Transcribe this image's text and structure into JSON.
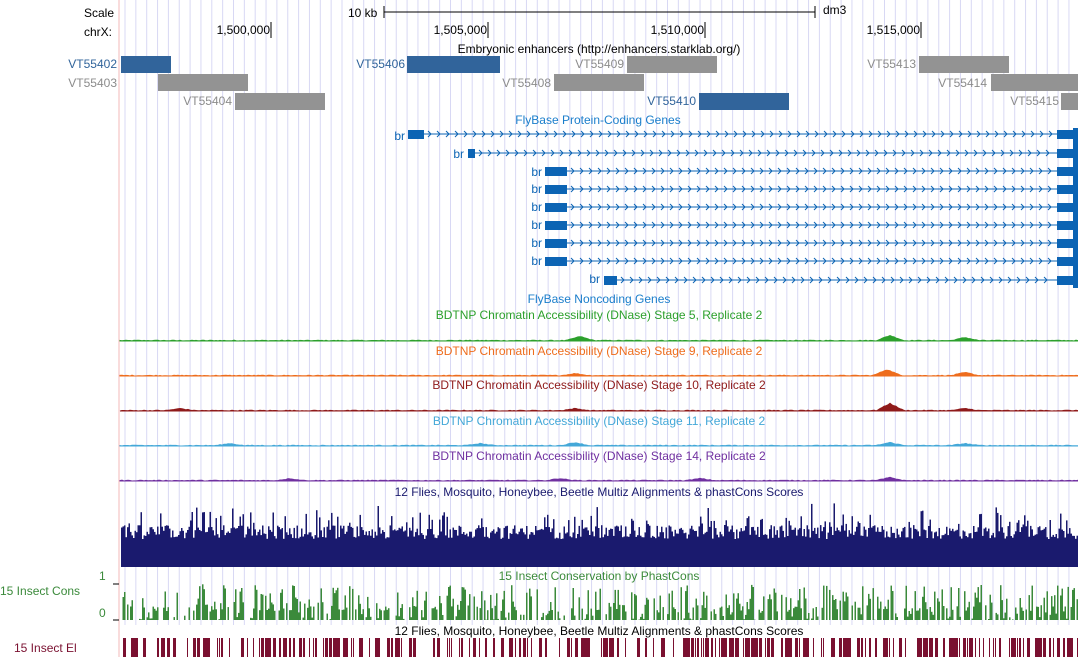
{
  "colors": {
    "enhancer_selected": "#31649b",
    "enhancer_other": "#939393",
    "enhancer_label_selected": "#31649b",
    "enhancer_label_other": "#8c8c8c",
    "gene": "#0c64b4",
    "noncoding": "#1a7ecb",
    "stage5": "#2ca02c",
    "stage9": "#ee6d1d",
    "stage10": "#8f1a1a",
    "stage11": "#44a8d8",
    "stage14": "#7030a0",
    "multiz": "#1a1a6e",
    "phastcons": "#3b8a3b",
    "elements": "#7a1030",
    "gridline": "#d8d8f4",
    "leftedge": "#f3b9b9"
  },
  "ruler": {
    "scale_label": "Scale",
    "scale_value": "10 kb",
    "assembly": "dm3",
    "chrom_label": "chrX:",
    "ticks": [
      "1,500,000",
      "1,505,000",
      "1,510,000",
      "1,515,000"
    ]
  },
  "tracks": {
    "enhancers": {
      "title": "Embryonic enhancers (http://enhancers.starklab.org/)",
      "items": [
        {
          "label": "VT55402",
          "selected": true
        },
        {
          "label": "VT55403",
          "selected": false
        },
        {
          "label": "VT55404",
          "selected": false
        },
        {
          "label": "VT55406",
          "selected": true
        },
        {
          "label": "VT55408",
          "selected": false
        },
        {
          "label": "VT55409",
          "selected": false
        },
        {
          "label": "VT55410",
          "selected": true
        },
        {
          "label": "VT55413",
          "selected": false
        },
        {
          "label": "VT55414",
          "selected": false
        },
        {
          "label": "VT55415",
          "selected": false
        }
      ]
    },
    "genes": {
      "title": "FlyBase Protein-Coding Genes",
      "transcripts": [
        "br",
        "br",
        "br",
        "br",
        "br",
        "br",
        "br",
        "br",
        "br"
      ]
    },
    "noncoding": {
      "title": "FlyBase Noncoding Genes"
    },
    "dnase": [
      {
        "title": "BDTNP Chromatin Accessibility (DNase) Stage 5, Replicate 2",
        "color_key": "stage5"
      },
      {
        "title": "BDTNP Chromatin Accessibility (DNase) Stage 9, Replicate 2",
        "color_key": "stage9"
      },
      {
        "title": "BDTNP Chromatin Accessibility (DNase) Stage 10, Replicate 2",
        "color_key": "stage10"
      },
      {
        "title": "BDTNP Chromatin Accessibility (DNase) Stage 11, Replicate 2",
        "color_key": "stage11"
      },
      {
        "title": "BDTNP Chromatin Accessibility (DNase) Stage 14, Replicate 2",
        "color_key": "stage14"
      }
    ],
    "multiz": {
      "title": "12 Flies, Mosquito, Honeybee, Beetle Multiz Alignments & phastCons Scores"
    },
    "phastcons": {
      "title": "15 Insect Conservation by PhastCons",
      "side_label": "15 Insect Cons",
      "ymax": "1",
      "ymin": "0"
    },
    "elements": {
      "title": "12 Flies, Mosquito, Honeybee, Beetle Multiz Alignments & phastCons Scores",
      "side_label": "15 Insect El"
    }
  }
}
